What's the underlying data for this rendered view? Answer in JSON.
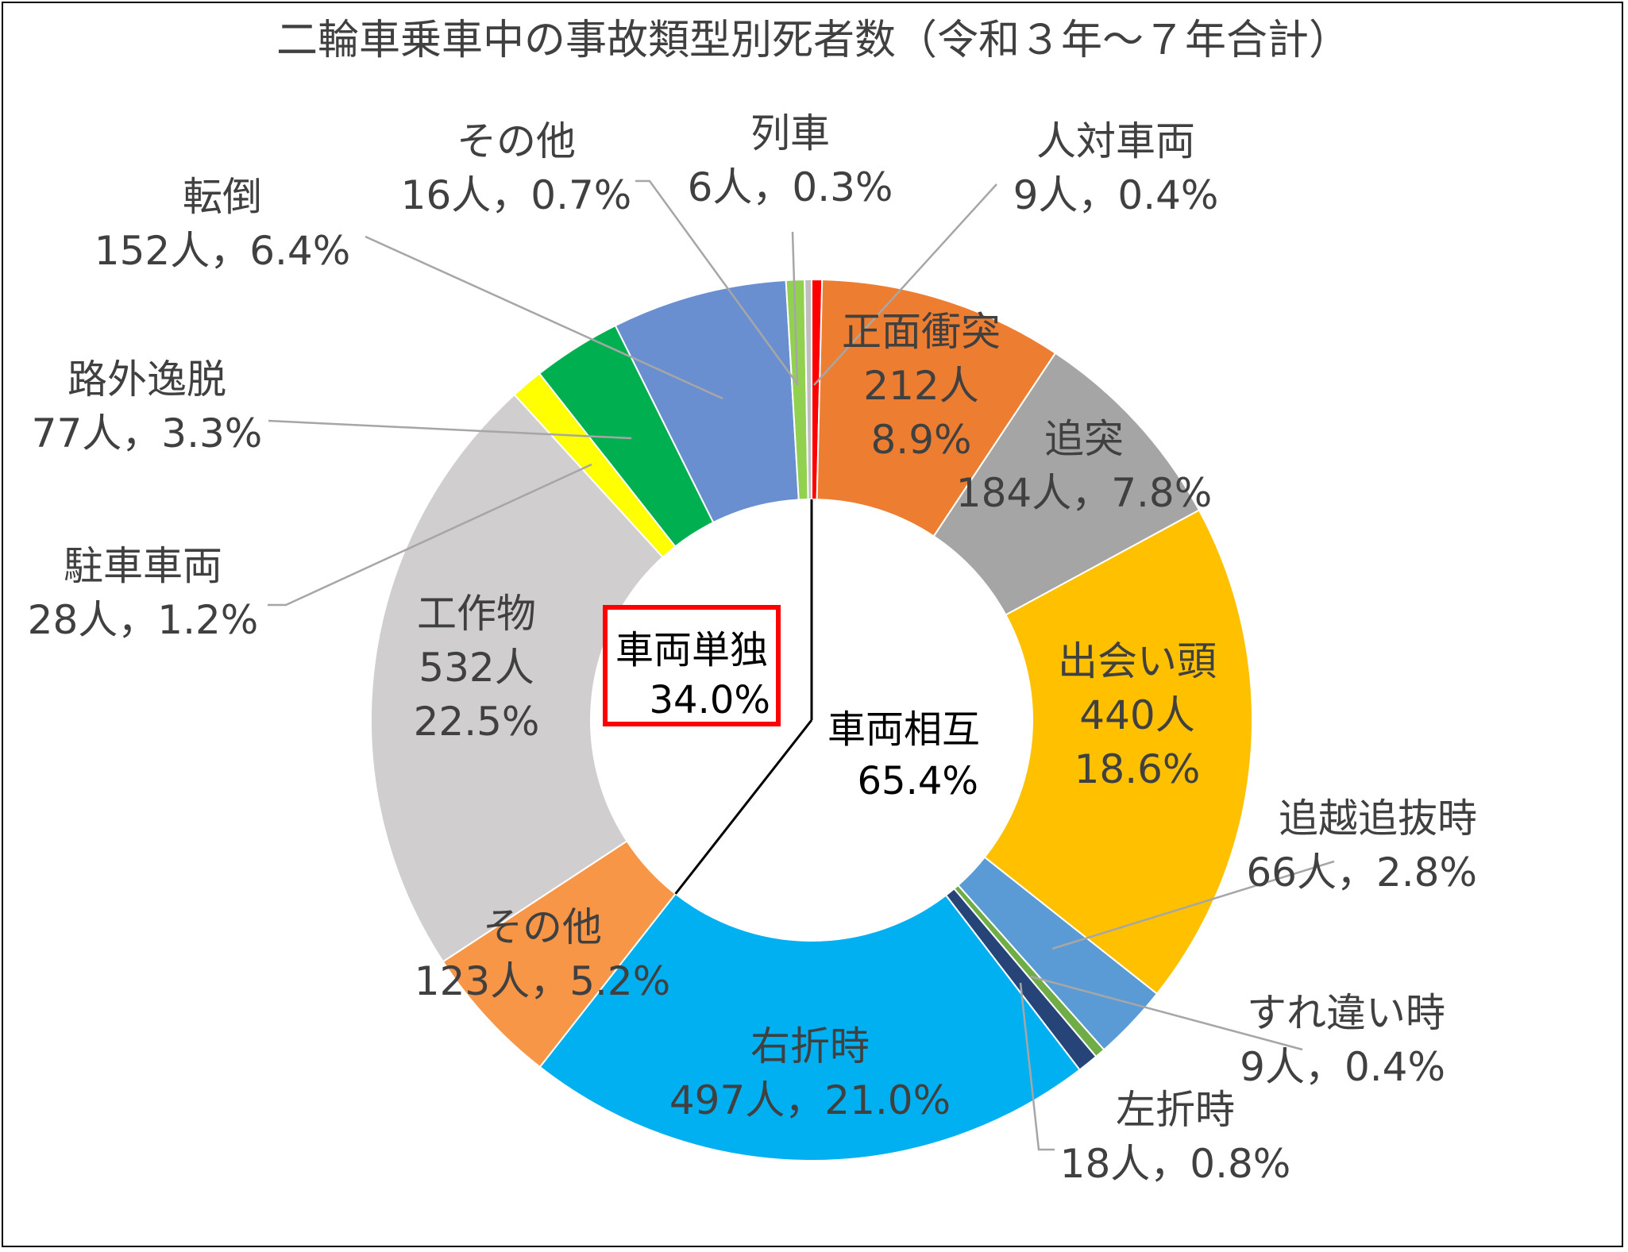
{
  "chart_data": {
    "type": "pie",
    "title": "二輪車乗車中の事故類型別死者数（令和３年～７年合計）",
    "slices": [
      {
        "name": "人対車両",
        "count": "9人",
        "percent": "0.4%",
        "value": 9,
        "color": "#ff0000"
      },
      {
        "name": "正面衝突",
        "count": "212人",
        "percent": "8.9%",
        "value": 212,
        "color": "#ed7d31"
      },
      {
        "name": "追突",
        "count": "184人",
        "percent": "7.8%",
        "value": 184,
        "color": "#a5a5a5"
      },
      {
        "name": "出会い頭",
        "count": "440人",
        "percent": "18.6%",
        "value": 440,
        "color": "#ffc000"
      },
      {
        "name": "追越追抜時",
        "count": "66人",
        "percent": "2.8%",
        "value": 66,
        "color": "#5b9bd5"
      },
      {
        "name": "すれ違い時",
        "count": "9人",
        "percent": "0.4%",
        "value": 9,
        "color": "#70ad47"
      },
      {
        "name": "左折時",
        "count": "18人",
        "percent": "0.8%",
        "value": 18,
        "color": "#264478"
      },
      {
        "name": "右折時",
        "count": "497人",
        "percent": "21.0%",
        "value": 497,
        "color": "#00b0f0"
      },
      {
        "name": "その他",
        "count": "123人",
        "percent": "5.2%",
        "value": 123,
        "color": "#f79646"
      },
      {
        "name": "工作物",
        "count": "532人",
        "percent": "22.5%",
        "value": 532,
        "color": "#d0cece"
      },
      {
        "name": "駐車車両",
        "count": "28人",
        "percent": "1.2%",
        "value": 28,
        "color": "#ffff00"
      },
      {
        "name": "路外逸脱",
        "count": "77人",
        "percent": "3.3%",
        "value": 77,
        "color": "#00b050"
      },
      {
        "name": "転倒",
        "count": "152人",
        "percent": "6.4%",
        "value": 152,
        "color": "#6a8fd0"
      },
      {
        "name": "その他",
        "count": "16人",
        "percent": "0.7%",
        "value": 16,
        "color": "#92d050"
      },
      {
        "name": "列車",
        "count": "6人",
        "percent": "0.3%",
        "value": 6,
        "color": "#bfbfbf"
      }
    ],
    "groups": [
      {
        "name": "車両単独",
        "percent": "34.0%"
      },
      {
        "name": "車両相互",
        "percent": "65.4%"
      }
    ],
    "highlight_color": "#ff0000"
  }
}
